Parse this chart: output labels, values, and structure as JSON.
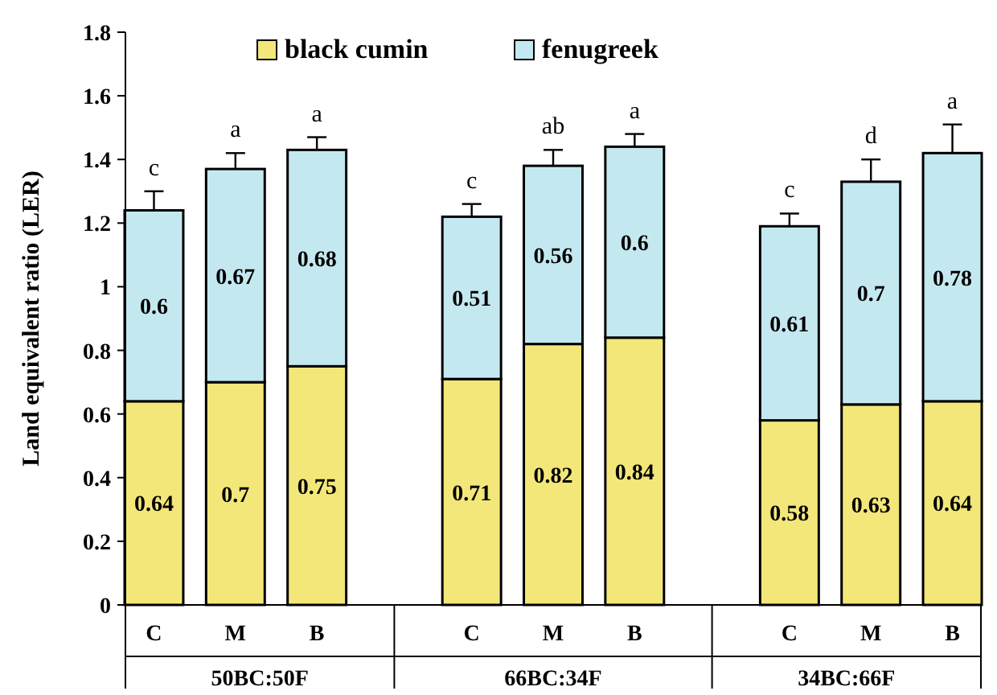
{
  "chart_data": {
    "type": "bar",
    "stacked": true,
    "ylabel": "Land equivalent ratio  (LER)",
    "categories": [
      "C",
      "M",
      "B",
      "C",
      "M",
      "B",
      "C",
      "M",
      "B"
    ],
    "series": [
      {
        "name": "black cumin",
        "color": "#f3e77a",
        "values": [
          0.64,
          0.7,
          0.75,
          0.71,
          0.82,
          0.84,
          0.58,
          0.63,
          0.64
        ]
      },
      {
        "name": "fenugreek",
        "color": "#c4e8f0",
        "values": [
          0.6,
          0.67,
          0.68,
          0.51,
          0.56,
          0.6,
          0.61,
          0.7,
          0.78
        ],
        "errors": [
          0.06,
          0.05,
          0.04,
          0.04,
          0.05,
          0.04,
          0.04,
          0.07,
          0.09
        ]
      }
    ],
    "data_labels": true,
    "ylim": [
      0,
      1.8
    ],
    "yticks": [
      0,
      0.2,
      0.4,
      0.6,
      0.8,
      1,
      1.2,
      1.4,
      1.6,
      1.8
    ],
    "legend": "top",
    "annotations": [
      "c",
      "a",
      "a",
      "c",
      "ab",
      "a",
      "c",
      "d",
      "a",
      "50BC:50F",
      "66BC:34F",
      "34BC:66F"
    ]
  }
}
